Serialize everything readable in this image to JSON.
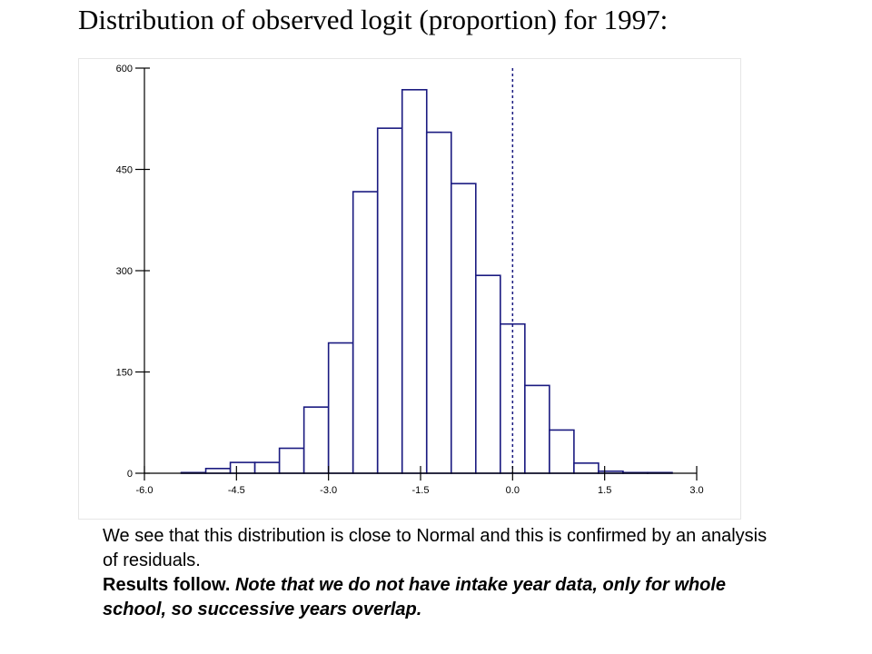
{
  "slide": {
    "title": "Distribution of observed logit (proportion) for 1997:",
    "caption_line1": "We see that this distribution is close to Normal and this is confirmed by an analysis of residuals.",
    "caption_bold": "Results follow.",
    "caption_bold_italic": "Note that we do not have intake year data, only for whole school, so successive years overlap."
  },
  "chart_data": {
    "type": "bar",
    "subtype": "histogram",
    "title": "",
    "xlabel": "",
    "ylabel": "",
    "bin_edges": [
      -5.4,
      -5.0,
      -4.6,
      -4.2,
      -3.8,
      -3.4,
      -3.0,
      -2.6,
      -2.2,
      -1.8,
      -1.4,
      -1.0,
      -0.6,
      -0.2,
      0.2,
      0.6,
      1.0,
      1.4,
      1.8,
      2.2,
      2.6
    ],
    "values": [
      1,
      7,
      16,
      16,
      37,
      98,
      193,
      417,
      511,
      568,
      505,
      429,
      293,
      221,
      130,
      64,
      15,
      3,
      1,
      1
    ],
    "xlim": [
      -6.0,
      3.0
    ],
    "ylim": [
      0,
      600
    ],
    "x_ticks": [
      "-6.0",
      "-4.5",
      "-3.0",
      "-1.5",
      "0.0",
      "1.5",
      "3.0"
    ],
    "y_ticks": [
      "0",
      "150",
      "300",
      "450",
      "600"
    ],
    "reference_line": {
      "x": 0.0,
      "style": "dashed"
    },
    "grid": false,
    "colors": {
      "bar_stroke": "#1a1a80",
      "bar_fill": "#ffffff",
      "axis": "#000000",
      "reference_line": "#1a1a80"
    }
  }
}
